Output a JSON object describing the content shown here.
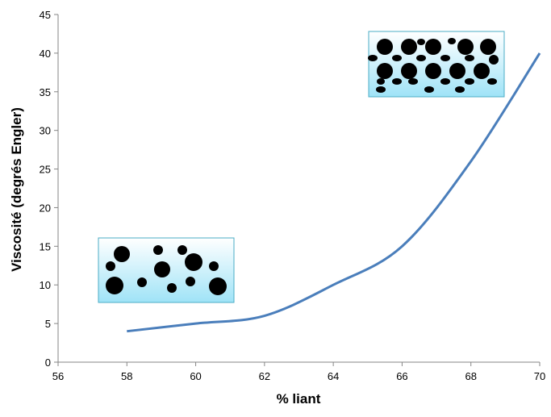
{
  "chart_data": {
    "type": "line",
    "x_label": "% liant",
    "y_label": "Viscosité (degrés Engler)",
    "series": [
      {
        "color": "#4a7ebb",
        "x": [
          58,
          60,
          62,
          64,
          66,
          68,
          70
        ],
        "values": [
          4,
          5,
          6,
          10,
          15,
          26,
          40
        ]
      }
    ],
    "xlim": [
      56,
      70
    ],
    "xticks": [
      56,
      58,
      60,
      62,
      64,
      66,
      68,
      70
    ],
    "ylim": [
      0,
      45
    ],
    "yticks": [
      0,
      5,
      10,
      15,
      20,
      25,
      30,
      35,
      40,
      45
    ],
    "grid": false
  }
}
